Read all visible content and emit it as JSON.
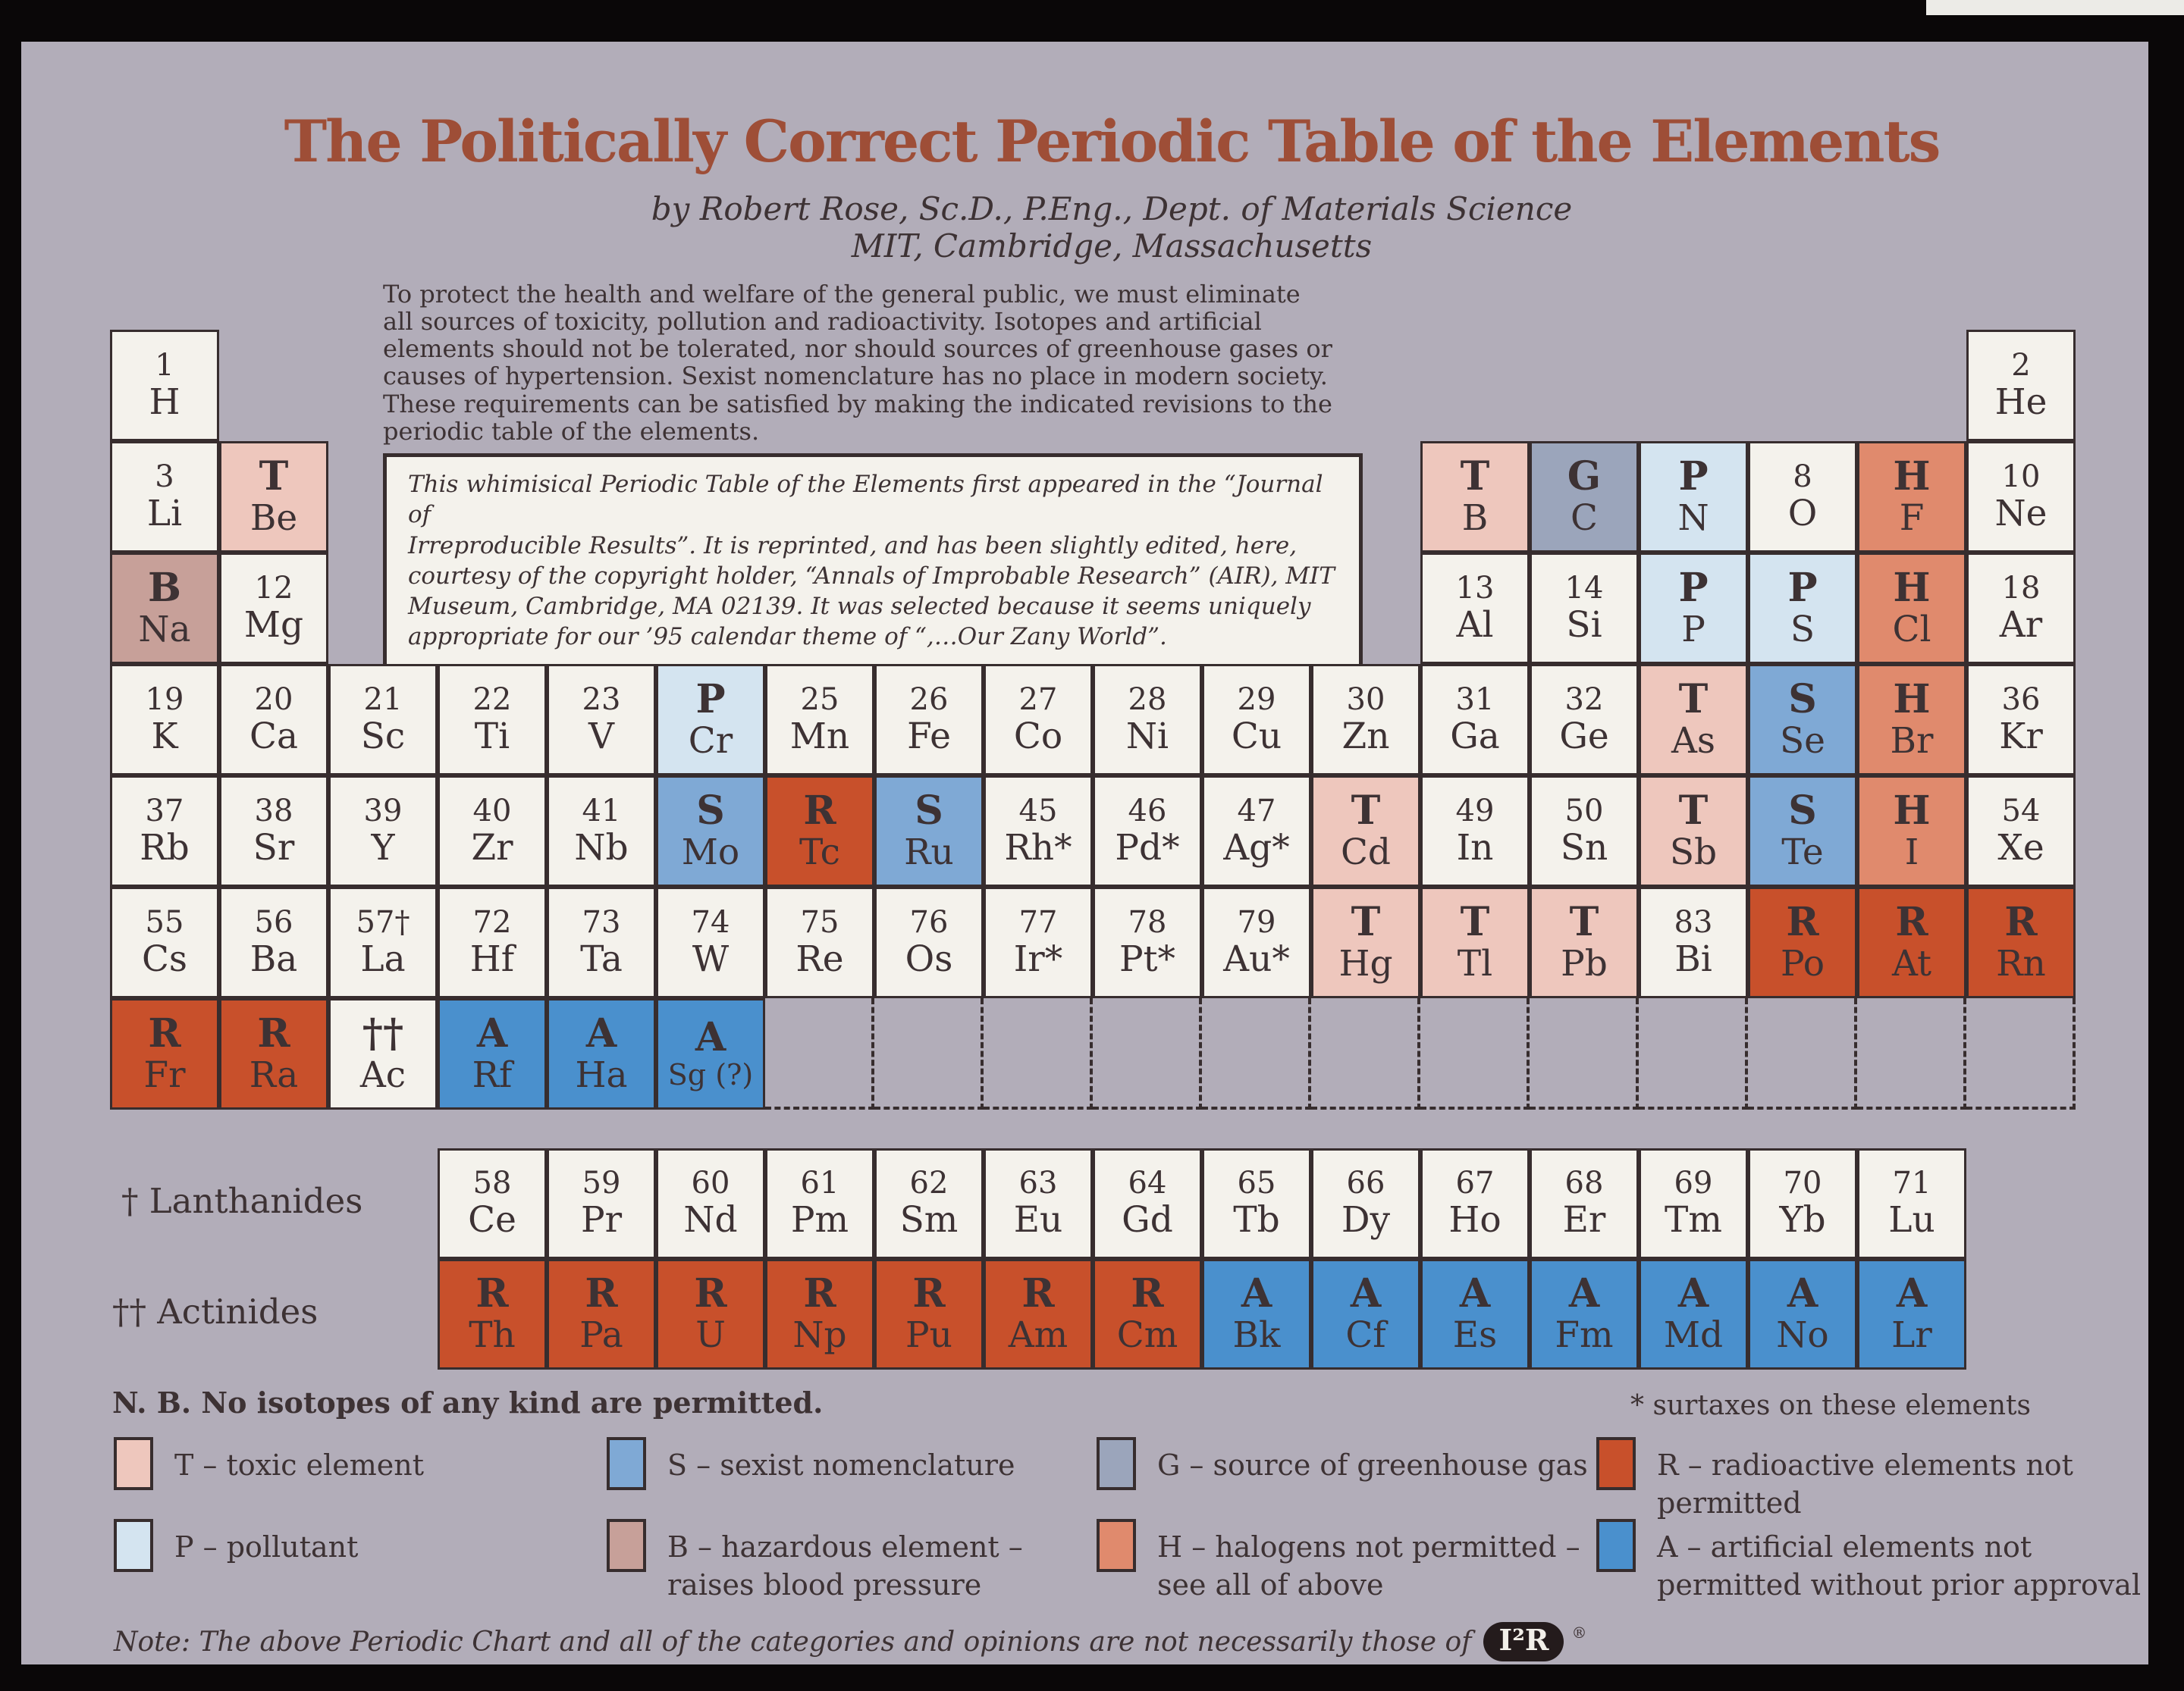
{
  "palette": {
    "frame": "#0a0708",
    "bg": "#b2adb9",
    "paper": "#f4f2ec",
    "ink": "#3d3234",
    "title": "#9e4e37",
    "border": "#372d2e"
  },
  "colors": {
    "none": "#f4f2ec",
    "toxic": "#eec7bd",
    "pollutant": "#d4e4f0",
    "sexist": "#7fa9d5",
    "greenhouse": "#9ba5bb",
    "halogen": "#e08a6d",
    "hazard": "#c7a099",
    "radioactive": "#c8502b",
    "artificial": "#4a90cd"
  },
  "header": {
    "title": "The Politically Correct Periodic Table of the Elements",
    "byline1": "by Robert Rose, Sc.D., P.Eng., Dept. of Materials Science",
    "byline2": "MIT, Cambridge, Massachusetts"
  },
  "intro": "To protect the health and welfare of the general public, we must eliminate\nall sources of toxicity, pollution and radioactivity. Isotopes and artificial\nelements should not be tolerated, nor should sources of greenhouse gases or\ncauses of hypertension. Sexist nomenclature has no place in modern society.\nThese requirements can be satisfied by making the indicated revisions to the\nperiodic table of the elements.",
  "boxed_note": "This whimisical Periodic Table of the Elements first appeared in the “Journal of\nIrreproducible Results”. It is reprinted, and has been slightly edited, here,\ncourtesy of the copyright holder, “Annals of Improbable Research” (AIR), MIT\nMuseum, Cambridge, MA 02139. It was selected because it seems uniquely\nappropriate for our ’95 calendar theme of “,…Our Zany World”.",
  "table": {
    "dashed_row": 7,
    "dashed_cols": [
      7,
      8,
      9,
      10,
      11,
      12,
      13,
      14,
      15,
      16,
      17,
      18
    ],
    "cells": [
      {
        "r": 1,
        "c": 1,
        "n": "1",
        "s": "H"
      },
      {
        "r": 1,
        "c": 18,
        "n": "2",
        "s": "He"
      },
      {
        "r": 2,
        "c": 1,
        "n": "3",
        "s": "Li"
      },
      {
        "r": 2,
        "c": 2,
        "n": "T",
        "s": "Be",
        "cat": "toxic"
      },
      {
        "r": 2,
        "c": 13,
        "n": "T",
        "s": "B",
        "cat": "toxic"
      },
      {
        "r": 2,
        "c": 14,
        "n": "G",
        "s": "C",
        "cat": "greenhouse"
      },
      {
        "r": 2,
        "c": 15,
        "n": "P",
        "s": "N",
        "cat": "pollutant"
      },
      {
        "r": 2,
        "c": 16,
        "n": "8",
        "s": "O"
      },
      {
        "r": 2,
        "c": 17,
        "n": "H",
        "s": "F",
        "cat": "halogen"
      },
      {
        "r": 2,
        "c": 18,
        "n": "10",
        "s": "Ne"
      },
      {
        "r": 3,
        "c": 1,
        "n": "B",
        "s": "Na",
        "cat": "hazard"
      },
      {
        "r": 3,
        "c": 2,
        "n": "12",
        "s": "Mg"
      },
      {
        "r": 3,
        "c": 13,
        "n": "13",
        "s": "Al"
      },
      {
        "r": 3,
        "c": 14,
        "n": "14",
        "s": "Si"
      },
      {
        "r": 3,
        "c": 15,
        "n": "P",
        "s": "P",
        "cat": "pollutant"
      },
      {
        "r": 3,
        "c": 16,
        "n": "P",
        "s": "S",
        "cat": "pollutant"
      },
      {
        "r": 3,
        "c": 17,
        "n": "H",
        "s": "Cl",
        "cat": "halogen"
      },
      {
        "r": 3,
        "c": 18,
        "n": "18",
        "s": "Ar"
      },
      {
        "r": 4,
        "c": 1,
        "n": "19",
        "s": "K"
      },
      {
        "r": 4,
        "c": 2,
        "n": "20",
        "s": "Ca"
      },
      {
        "r": 4,
        "c": 3,
        "n": "21",
        "s": "Sc"
      },
      {
        "r": 4,
        "c": 4,
        "n": "22",
        "s": "Ti"
      },
      {
        "r": 4,
        "c": 5,
        "n": "23",
        "s": "V"
      },
      {
        "r": 4,
        "c": 6,
        "n": "P",
        "s": "Cr",
        "cat": "pollutant"
      },
      {
        "r": 4,
        "c": 7,
        "n": "25",
        "s": "Mn"
      },
      {
        "r": 4,
        "c": 8,
        "n": "26",
        "s": "Fe"
      },
      {
        "r": 4,
        "c": 9,
        "n": "27",
        "s": "Co"
      },
      {
        "r": 4,
        "c": 10,
        "n": "28",
        "s": "Ni"
      },
      {
        "r": 4,
        "c": 11,
        "n": "29",
        "s": "Cu"
      },
      {
        "r": 4,
        "c": 12,
        "n": "30",
        "s": "Zn"
      },
      {
        "r": 4,
        "c": 13,
        "n": "31",
        "s": "Ga"
      },
      {
        "r": 4,
        "c": 14,
        "n": "32",
        "s": "Ge"
      },
      {
        "r": 4,
        "c": 15,
        "n": "T",
        "s": "As",
        "cat": "toxic"
      },
      {
        "r": 4,
        "c": 16,
        "n": "S",
        "s": "Se",
        "cat": "sexist"
      },
      {
        "r": 4,
        "c": 17,
        "n": "H",
        "s": "Br",
        "cat": "halogen"
      },
      {
        "r": 4,
        "c": 18,
        "n": "36",
        "s": "Kr"
      },
      {
        "r": 5,
        "c": 1,
        "n": "37",
        "s": "Rb"
      },
      {
        "r": 5,
        "c": 2,
        "n": "38",
        "s": "Sr"
      },
      {
        "r": 5,
        "c": 3,
        "n": "39",
        "s": "Y"
      },
      {
        "r": 5,
        "c": 4,
        "n": "40",
        "s": "Zr"
      },
      {
        "r": 5,
        "c": 5,
        "n": "41",
        "s": "Nb"
      },
      {
        "r": 5,
        "c": 6,
        "n": "S",
        "s": "Mo",
        "cat": "sexist"
      },
      {
        "r": 5,
        "c": 7,
        "n": "R",
        "s": "Tc",
        "cat": "radioactive"
      },
      {
        "r": 5,
        "c": 8,
        "n": "S",
        "s": "Ru",
        "cat": "sexist"
      },
      {
        "r": 5,
        "c": 9,
        "n": "45",
        "s": "Rh*"
      },
      {
        "r": 5,
        "c": 10,
        "n": "46",
        "s": "Pd*"
      },
      {
        "r": 5,
        "c": 11,
        "n": "47",
        "s": "Ag*"
      },
      {
        "r": 5,
        "c": 12,
        "n": "T",
        "s": "Cd",
        "cat": "toxic"
      },
      {
        "r": 5,
        "c": 13,
        "n": "49",
        "s": "In"
      },
      {
        "r": 5,
        "c": 14,
        "n": "50",
        "s": "Sn"
      },
      {
        "r": 5,
        "c": 15,
        "n": "T",
        "s": "Sb",
        "cat": "toxic"
      },
      {
        "r": 5,
        "c": 16,
        "n": "S",
        "s": "Te",
        "cat": "sexist"
      },
      {
        "r": 5,
        "c": 17,
        "n": "H",
        "s": "I",
        "cat": "halogen"
      },
      {
        "r": 5,
        "c": 18,
        "n": "54",
        "s": "Xe"
      },
      {
        "r": 6,
        "c": 1,
        "n": "55",
        "s": "Cs"
      },
      {
        "r": 6,
        "c": 2,
        "n": "56",
        "s": "Ba"
      },
      {
        "r": 6,
        "c": 3,
        "n": "57†",
        "s": "La"
      },
      {
        "r": 6,
        "c": 4,
        "n": "72",
        "s": "Hf"
      },
      {
        "r": 6,
        "c": 5,
        "n": "73",
        "s": "Ta"
      },
      {
        "r": 6,
        "c": 6,
        "n": "74",
        "s": "W"
      },
      {
        "r": 6,
        "c": 7,
        "n": "75",
        "s": "Re"
      },
      {
        "r": 6,
        "c": 8,
        "n": "76",
        "s": "Os"
      },
      {
        "r": 6,
        "c": 9,
        "n": "77",
        "s": "Ir*"
      },
      {
        "r": 6,
        "c": 10,
        "n": "78",
        "s": "Pt*"
      },
      {
        "r": 6,
        "c": 11,
        "n": "79",
        "s": "Au*"
      },
      {
        "r": 6,
        "c": 12,
        "n": "T",
        "s": "Hg",
        "cat": "toxic"
      },
      {
        "r": 6,
        "c": 13,
        "n": "T",
        "s": "Tl",
        "cat": "toxic"
      },
      {
        "r": 6,
        "c": 14,
        "n": "T",
        "s": "Pb",
        "cat": "toxic"
      },
      {
        "r": 6,
        "c": 15,
        "n": "83",
        "s": "Bi"
      },
      {
        "r": 6,
        "c": 16,
        "n": "R",
        "s": "Po",
        "cat": "radioactive"
      },
      {
        "r": 6,
        "c": 17,
        "n": "R",
        "s": "At",
        "cat": "radioactive"
      },
      {
        "r": 6,
        "c": 18,
        "n": "R",
        "s": "Rn",
        "cat": "radioactive"
      },
      {
        "r": 7,
        "c": 1,
        "n": "R",
        "s": "Fr",
        "cat": "radioactive"
      },
      {
        "r": 7,
        "c": 2,
        "n": "R",
        "s": "Ra",
        "cat": "radioactive"
      },
      {
        "r": 7,
        "c": 3,
        "n": "††",
        "s": "Ac",
        "b": 1
      },
      {
        "r": 7,
        "c": 4,
        "n": "A",
        "s": "Rf",
        "cat": "artificial"
      },
      {
        "r": 7,
        "c": 5,
        "n": "A",
        "s": "Ha",
        "cat": "artificial"
      },
      {
        "r": 7,
        "c": 6,
        "n": "A",
        "s": "Sg (?)",
        "cat": "artificial"
      }
    ]
  },
  "lanthanides": {
    "label": "† Lanthanides",
    "cells": [
      {
        "n": "58",
        "s": "Ce"
      },
      {
        "n": "59",
        "s": "Pr"
      },
      {
        "n": "60",
        "s": "Nd"
      },
      {
        "n": "61",
        "s": "Pm"
      },
      {
        "n": "62",
        "s": "Sm"
      },
      {
        "n": "63",
        "s": "Eu"
      },
      {
        "n": "64",
        "s": "Gd"
      },
      {
        "n": "65",
        "s": "Tb"
      },
      {
        "n": "66",
        "s": "Dy"
      },
      {
        "n": "67",
        "s": "Ho"
      },
      {
        "n": "68",
        "s": "Er"
      },
      {
        "n": "69",
        "s": "Tm"
      },
      {
        "n": "70",
        "s": "Yb"
      },
      {
        "n": "71",
        "s": "Lu"
      }
    ]
  },
  "actinides": {
    "label": "†† Actinides",
    "cells": [
      {
        "n": "R",
        "s": "Th",
        "cat": "radioactive"
      },
      {
        "n": "R",
        "s": "Pa",
        "cat": "radioactive"
      },
      {
        "n": "R",
        "s": "U",
        "cat": "radioactive"
      },
      {
        "n": "R",
        "s": "Np",
        "cat": "radioactive"
      },
      {
        "n": "R",
        "s": "Pu",
        "cat": "radioactive"
      },
      {
        "n": "R",
        "s": "Am",
        "cat": "radioactive"
      },
      {
        "n": "R",
        "s": "Cm",
        "cat": "radioactive"
      },
      {
        "n": "A",
        "s": "Bk",
        "cat": "artificial"
      },
      {
        "n": "A",
        "s": "Cf",
        "cat": "artificial"
      },
      {
        "n": "A",
        "s": "Es",
        "cat": "artificial"
      },
      {
        "n": "A",
        "s": "Fm",
        "cat": "artificial"
      },
      {
        "n": "A",
        "s": "Md",
        "cat": "artificial"
      },
      {
        "n": "A",
        "s": "No",
        "cat": "artificial"
      },
      {
        "n": "A",
        "s": "Lr",
        "cat": "artificial"
      }
    ]
  },
  "footnotes": {
    "nb": "N. B. No isotopes of any kind are permitted.",
    "surtax": "* surtaxes on these elements"
  },
  "legend": {
    "items": [
      {
        "code": "T",
        "cat": "toxic",
        "col": 1,
        "row": 1,
        "lines": [
          "T – toxic element"
        ]
      },
      {
        "code": "S",
        "cat": "sexist",
        "col": 2,
        "row": 1,
        "lines": [
          "S – sexist nomenclature"
        ]
      },
      {
        "code": "G",
        "cat": "greenhouse",
        "col": 3,
        "row": 1,
        "lines": [
          "G – source of greenhouse gas"
        ]
      },
      {
        "code": "R",
        "cat": "radioactive",
        "col": 4,
        "row": 1,
        "lines": [
          "R – radioactive elements not",
          "permitted"
        ]
      },
      {
        "code": "P",
        "cat": "pollutant",
        "col": 1,
        "row": 2,
        "lines": [
          "P – pollutant"
        ]
      },
      {
        "code": "B",
        "cat": "hazard",
        "col": 2,
        "row": 2,
        "lines": [
          "B – hazardous element –",
          "raises blood pressure"
        ]
      },
      {
        "code": "H",
        "cat": "halogen",
        "col": 3,
        "row": 2,
        "lines": [
          "H – halogens not permitted –",
          "see all of above"
        ]
      },
      {
        "code": "A",
        "cat": "artificial",
        "col": 4,
        "row": 2,
        "lines": [
          "A – artificial elements not",
          "permitted without prior approval"
        ]
      }
    ]
  },
  "bottom": {
    "note": "Note: The above Periodic Chart and all of the categories and opinions are not necessarily those of",
    "logo": "I²R",
    "reg": "®"
  }
}
